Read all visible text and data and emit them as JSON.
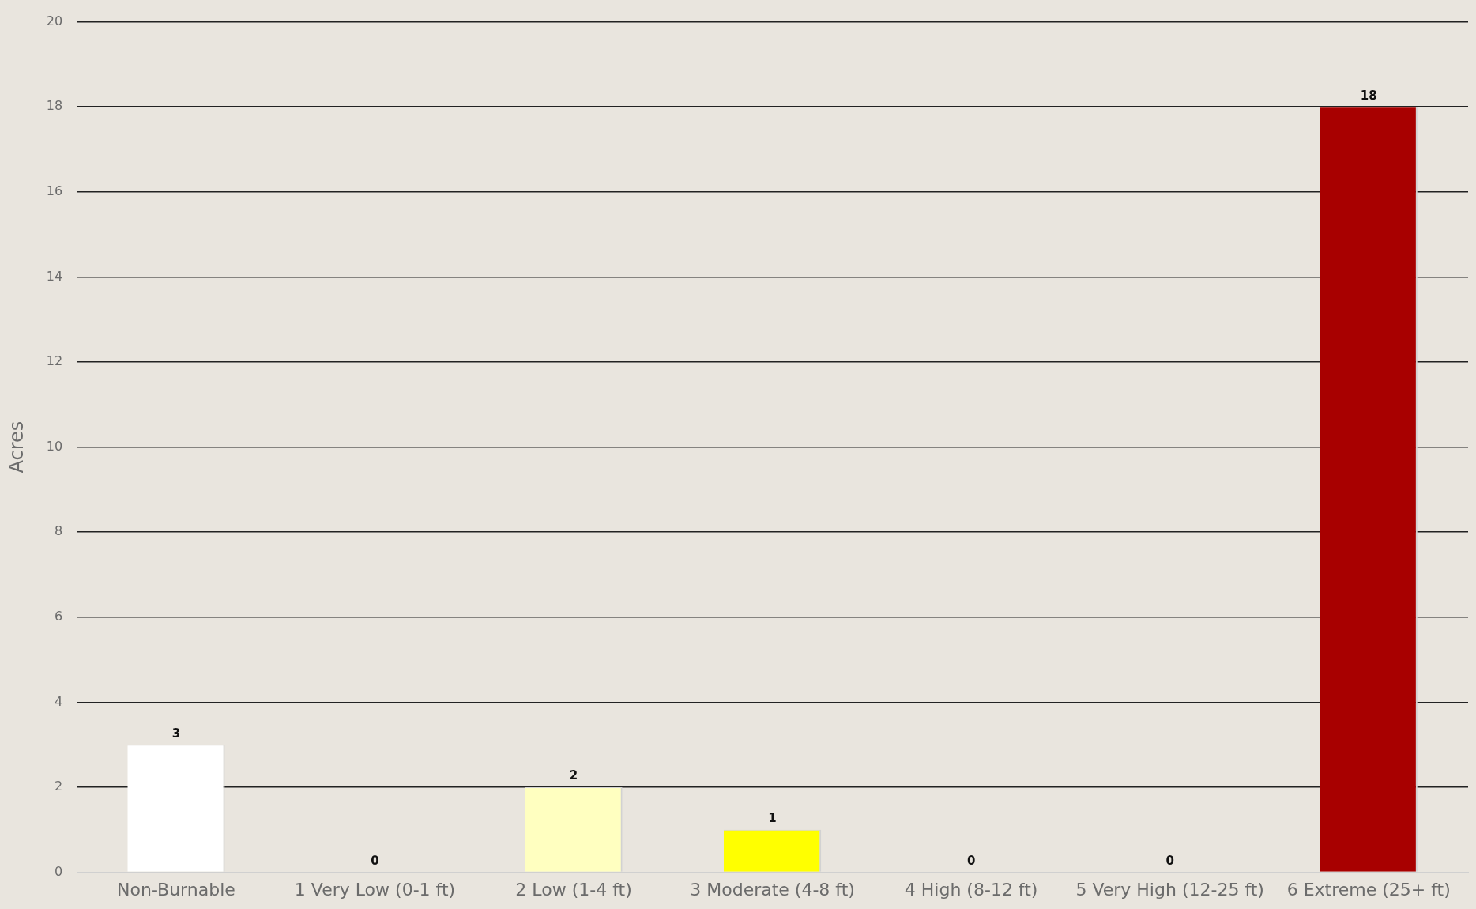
{
  "chart_data": {
    "type": "bar",
    "ylabel": "Acres",
    "categories": [
      "Non-Burnable",
      "1 Very Low (0-1 ft)",
      "2 Low (1-4 ft)",
      "3 Moderate (4-8 ft)",
      "4 High (8-12 ft)",
      "5 Very High (12-25 ft)",
      "6 Extreme (25+ ft)"
    ],
    "values": [
      3,
      0,
      2,
      1,
      0,
      0,
      18
    ],
    "colors": [
      "#ffffff",
      "#d9f0a3",
      "#ffffc0",
      "#ffff00",
      "#fdae61",
      "#f46d43",
      "#a80000"
    ],
    "ylim": [
      0,
      20
    ],
    "yticks": [
      0,
      2,
      4,
      6,
      8,
      10,
      12,
      14,
      16,
      18,
      20
    ],
    "grid": "y",
    "data_labels": true
  }
}
